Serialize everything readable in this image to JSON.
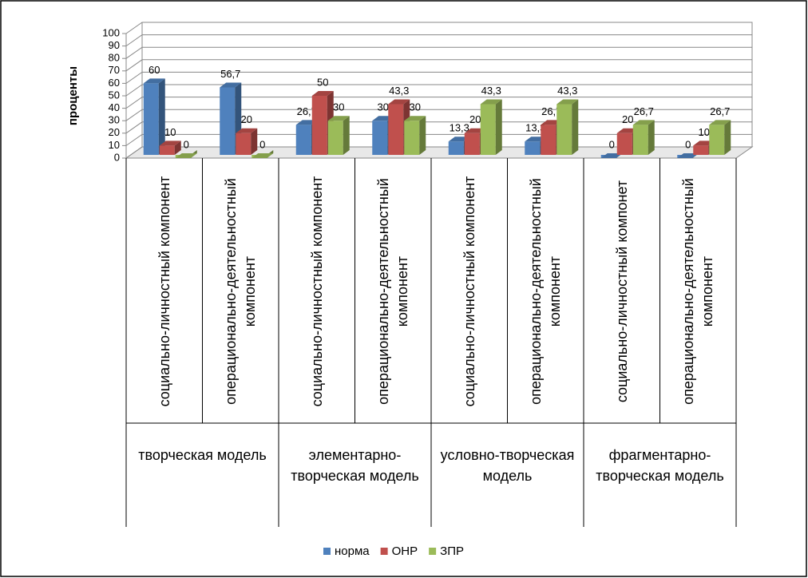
{
  "chart_data": {
    "type": "bar3d",
    "y_label": "проценты",
    "groups": [
      {
        "label": "творческая модель",
        "categories": [
          "социально-личностный компонент",
          "операционально-деятельностный компонент"
        ]
      },
      {
        "label": "элементарно-творческая модель",
        "categories": [
          "социально-личностный компонент",
          "операционально-деятельностный компонент"
        ]
      },
      {
        "label": "условно-творческая модель",
        "categories": [
          "социально-личностный компонент",
          "операционально-деятельностный компонент"
        ]
      },
      {
        "label": "фрагментарно-творческая модель",
        "categories": [
          "социально-личностный компонет",
          "операционально-деятельностный компонент"
        ]
      }
    ],
    "series": [
      {
        "name": "норма",
        "color": "#4f81bd",
        "values": [
          60,
          56.7,
          26.7,
          30,
          13.3,
          13.3,
          0,
          0
        ],
        "value_labels": [
          "60",
          "56,7",
          "26,7",
          "30",
          "13,3",
          "13,3",
          "0",
          "0"
        ]
      },
      {
        "name": "ОНР",
        "color": "#c0504d",
        "values": [
          10,
          20,
          50,
          43.3,
          20,
          26.7,
          20,
          10
        ],
        "value_labels": [
          "10",
          "20",
          "50",
          "43,3",
          "20",
          "26,7",
          "20",
          "10"
        ]
      },
      {
        "name": "ЗПР",
        "color": "#9bbb59",
        "values": [
          0,
          0,
          30,
          30,
          43.3,
          43.3,
          26.7,
          26.7
        ],
        "value_labels": [
          "0",
          "0",
          "30",
          "30",
          "43,3",
          "43,3",
          "26,7",
          "26,7"
        ]
      }
    ],
    "ylim": [
      0,
      100
    ],
    "yticks": [
      0,
      10,
      20,
      30,
      40,
      50,
      60,
      70,
      80,
      90,
      100
    ],
    "grid": true,
    "legend": "bottom"
  }
}
